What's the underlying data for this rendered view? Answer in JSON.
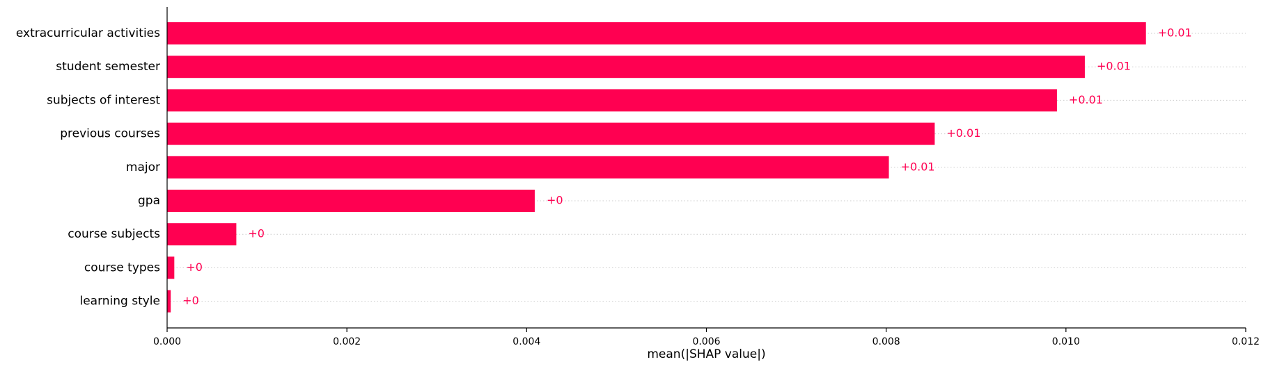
{
  "chart_data": {
    "type": "bar",
    "orientation": "horizontal",
    "categories": [
      "extracurricular activities",
      "student semester",
      "subjects of interest",
      "previous courses",
      "major",
      "gpa",
      "course subjects",
      "course types",
      "learning style"
    ],
    "values": [
      0.01089,
      0.01021,
      0.0099,
      0.00854,
      0.00803,
      0.00409,
      0.00077,
      8e-05,
      4e-05
    ],
    "value_labels": [
      "+0.01",
      "+0.01",
      "+0.01",
      "+0.01",
      "+0.01",
      "+0",
      "+0",
      "+0",
      "+0"
    ],
    "xlabel": "mean(|SHAP value|)",
    "ylabel": "",
    "xlim": [
      0,
      0.012
    ],
    "x_ticks": [
      0.0,
      0.002,
      0.004,
      0.006,
      0.008,
      0.01,
      0.012
    ],
    "x_tick_labels": [
      "0.000",
      "0.002",
      "0.004",
      "0.006",
      "0.008",
      "0.010",
      "0.012"
    ],
    "grid": "horizontal dotted row guides",
    "legend": "none",
    "colors": {
      "bar": "#ff0051",
      "value_label": "#ff0051",
      "axis": "#000000",
      "guide": "#cccccc",
      "text": "#000000"
    }
  }
}
